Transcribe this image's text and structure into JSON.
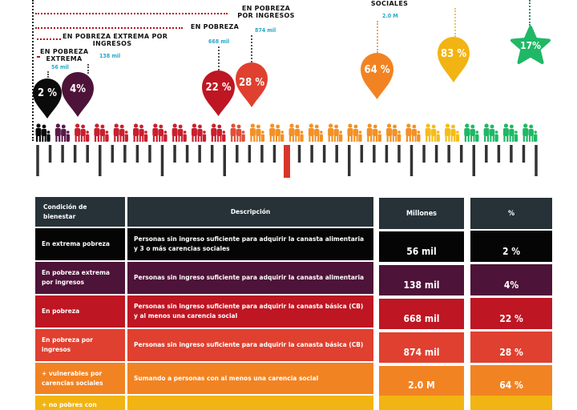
{
  "labels": {
    "pobreza_ingresos": [
      "EN POBREZA",
      "POR INGRESOS"
    ],
    "pobreza": "EN POBREZA",
    "extrema_ingresos": [
      "EN POBREZA EXTREMA POR",
      "INGRESOS"
    ],
    "extrema": [
      "EN POBREZA",
      "EXTREMA"
    ],
    "vulnerables": "SOCIALES"
  },
  "values": {
    "extrema": "56 mil",
    "extrema_ingresos": "138 mil",
    "pobreza": "668 mil",
    "pobreza_ingresos": "874 mil",
    "vulnerables": "2.0 M"
  },
  "pins": [
    {
      "name": "extrema",
      "text": "2 %",
      "color": "#0b0b0b"
    },
    {
      "name": "extrema-ingresos",
      "text": "4%",
      "color": "#4e1338"
    },
    {
      "name": "pobreza",
      "text": "22 %",
      "color": "#be1622"
    },
    {
      "name": "pobreza-ingresos",
      "text": "28 %",
      "color": "#e0402f"
    },
    {
      "name": "vulnerables",
      "text": "64 %",
      "color": "#f28322"
    },
    {
      "name": "no-pobres",
      "text": "83 %",
      "color": "#f2b412"
    }
  ],
  "star": {
    "text": "17%",
    "color": "#1fb865"
  },
  "families": {
    "groups": [
      {
        "color": "#0b0b0b",
        "count": 1
      },
      {
        "color": "#5a1a4a",
        "count": 1
      },
      {
        "color": "#c8202e",
        "count": 8
      },
      {
        "color": "#e0503a",
        "count": 1
      },
      {
        "color": "#f39127",
        "count": 9
      },
      {
        "color": "#f5bd1a",
        "count": 2
      },
      {
        "color": "#1fb865",
        "count": 4
      }
    ]
  },
  "ruler": {
    "tick_count": 41,
    "marker_index": 20,
    "tick_color": "#333333",
    "marker_color": "#d9362b"
  },
  "table": {
    "headers": {
      "condicion": "Condición de bienestar",
      "descripcion": "Descripción",
      "millones": "Millones",
      "pct": "%"
    },
    "header_color": "#263238",
    "rows": [
      {
        "condicion": "En extrema pobreza",
        "descripcion": "Personas sin ingreso suficiente para adquirir la canasta alimentaria y 3 o más carencias sociales",
        "millones": "56 mil",
        "pct": "2 %",
        "color": "#050505"
      },
      {
        "condicion": "En pobreza extrema por ingresos",
        "descripcion": "Personas sin ingreso suficiente para adquirir la canasta alimentaria",
        "millones": "138 mil",
        "pct": "4%",
        "color": "#4e1338"
      },
      {
        "condicion": "En pobreza",
        "descripcion": "Personas sin ingreso suficiente para adquirir la canasta básica (CB) y al menos una carencia social",
        "millones": "668 mil",
        "pct": "22 %",
        "color": "#be1622"
      },
      {
        "condicion": "En pobreza por ingresos",
        "descripcion": "Personas sin ingreso suficiente para adquirir la canasta básica (CB)",
        "millones": "874 mil",
        "pct": "28 %",
        "color": "#e0402f"
      },
      {
        "condicion": "+ vulnerables por carencias sociales",
        "descripcion": "Sumando a personas con al menos una carencia social",
        "millones": "2.0 M",
        "pct": "64 %",
        "color": "#f28322"
      },
      {
        "condicion": "+ no pobres con",
        "descripcion": "",
        "millones": "",
        "pct": "",
        "color": "#f2b412"
      }
    ]
  }
}
